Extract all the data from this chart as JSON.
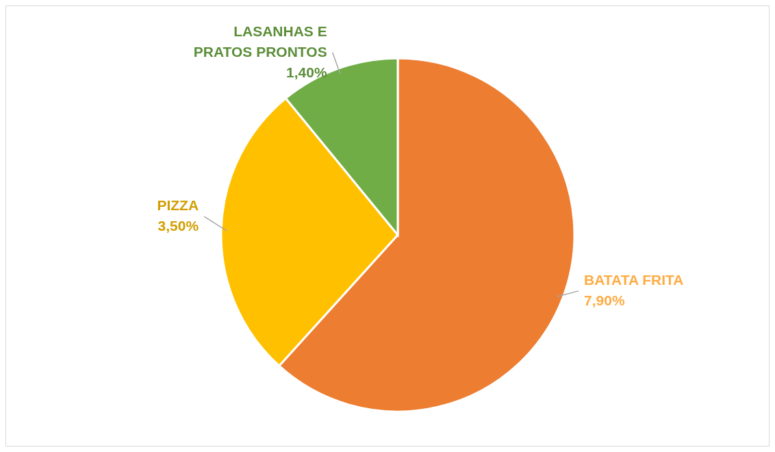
{
  "chart_data": {
    "type": "pie",
    "categories": [
      "BATATA FRITA",
      "PIZZA",
      "LASANHAS E PRATOS PRONTOS"
    ],
    "values": [
      7.9,
      3.5,
      1.4
    ],
    "value_labels": [
      "7,90%",
      "3,50%",
      "1,40%"
    ],
    "colors": [
      "#ed7d31",
      "#ffc000",
      "#70ad47"
    ]
  }
}
